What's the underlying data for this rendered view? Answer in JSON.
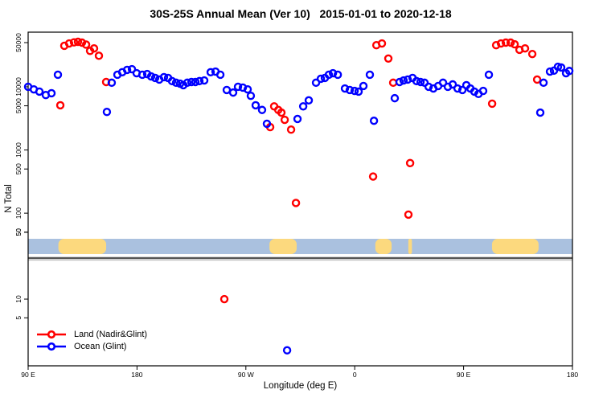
{
  "chart_data": {
    "type": "scatter",
    "title": "30S-25S Annual Mean (Ver 10)   2015-01-01 to 2020-12-18",
    "xlabel": "Longitude (deg E)",
    "ylabel": "N Total",
    "x_range_deg": [
      90,
      540
    ],
    "x_ticks": [
      {
        "lon": 90,
        "label": "90 E"
      },
      {
        "lon": 180,
        "label": "180"
      },
      {
        "lon": 270,
        "label": "90 W"
      },
      {
        "lon": 360,
        "label": "0"
      },
      {
        "lon": 450,
        "label": "90 E"
      },
      {
        "lon": 540,
        "label": "180"
      }
    ],
    "y_axis": {
      "scale": "log10",
      "broken": true,
      "upper_panel_ticks": [
        50000,
        10000,
        5000,
        1000,
        500,
        100,
        50
      ],
      "lower_panel_ticks": [
        50,
        10,
        5
      ],
      "upper_panel_range": [
        40,
        73000
      ],
      "lower_panel_range": [
        0.9,
        45
      ]
    },
    "surface_band": {
      "description_colors": {
        "ocean": "#AAC1DF",
        "land": "#FCD97E"
      },
      "land_segments_deg": [
        [
          115,
          154.5
        ],
        [
          289.5,
          312
        ],
        [
          377,
          390.5
        ],
        [
          404.3,
          407.3
        ],
        [
          473.5,
          512
        ]
      ]
    },
    "series": [
      {
        "name": "Land (Nadir&Glint)",
        "color": "#FF0000",
        "points": [
          [
            116.6,
            5100
          ],
          [
            119.9,
            44500
          ],
          [
            123.9,
            48500
          ],
          [
            127.9,
            50500
          ],
          [
            131.2,
            51500
          ],
          [
            134.5,
            50000
          ],
          [
            137.9,
            46500
          ],
          [
            141.2,
            37000
          ],
          [
            144.5,
            40500
          ],
          [
            148.5,
            31000
          ],
          [
            154.5,
            11900
          ],
          [
            252.2,
            10
          ],
          [
            290.1,
            2300
          ],
          [
            293.4,
            4900
          ],
          [
            296.8,
            4300
          ],
          [
            299.4,
            3900
          ],
          [
            302.1,
            3000
          ],
          [
            307.4,
            2100
          ],
          [
            311.4,
            145
          ],
          [
            375.2,
            380
          ],
          [
            377.9,
            45500
          ],
          [
            382.5,
            48500
          ],
          [
            387.8,
            28000
          ],
          [
            391.8,
            11600
          ],
          [
            404.4,
            95
          ],
          [
            405.8,
            620
          ],
          [
            473.6,
            5400
          ],
          [
            476.9,
            45500
          ],
          [
            480.9,
            48500
          ],
          [
            484.9,
            50000
          ],
          [
            488.9,
            50000
          ],
          [
            492.2,
            47000
          ],
          [
            496.2,
            38500
          ],
          [
            500.8,
            40500
          ],
          [
            506.8,
            33000
          ],
          [
            510.8,
            13000
          ]
        ]
      },
      {
        "name": "Ocean (Glint)",
        "color": "#0000FF",
        "points": [
          [
            90,
            10000
          ],
          [
            94.7,
            9100
          ],
          [
            99.3,
            8400
          ],
          [
            104.6,
            7400
          ],
          [
            109.3,
            7900
          ],
          [
            114.6,
            15500
          ],
          [
            155.1,
            4000
          ],
          [
            159.1,
            11600
          ],
          [
            163.8,
            15500
          ],
          [
            167.8,
            17000
          ],
          [
            171.8,
            18500
          ],
          [
            175.8,
            19000
          ],
          [
            179.7,
            16400
          ],
          [
            184.4,
            15500
          ],
          [
            188.4,
            15900
          ],
          [
            191.7,
            14600
          ],
          [
            195,
            13800
          ],
          [
            198.4,
            13000
          ],
          [
            202.3,
            14200
          ],
          [
            205.7,
            13800
          ],
          [
            209,
            12300
          ],
          [
            212.3,
            11600
          ],
          [
            215.6,
            11200
          ],
          [
            218.3,
            10600
          ],
          [
            221.6,
            11600
          ],
          [
            225,
            11900
          ],
          [
            228.3,
            11900
          ],
          [
            231.6,
            12300
          ],
          [
            235.6,
            12600
          ],
          [
            240.9,
            17000
          ],
          [
            244.9,
            17400
          ],
          [
            248.9,
            15500
          ],
          [
            254.2,
            8900
          ],
          [
            259.5,
            8100
          ],
          [
            263.5,
            10000
          ],
          [
            267.5,
            9700
          ],
          [
            271.5,
            9100
          ],
          [
            274.1,
            7200
          ],
          [
            278.1,
            5100
          ],
          [
            283.4,
            4300
          ],
          [
            287.4,
            2600
          ],
          [
            304.1,
            1.5
          ],
          [
            312.7,
            3100
          ],
          [
            317.4,
            4900
          ],
          [
            322,
            6100
          ],
          [
            328,
            11600
          ],
          [
            332,
            13400
          ],
          [
            335.3,
            13800
          ],
          [
            338.6,
            15500
          ],
          [
            342,
            16400
          ],
          [
            346,
            15500
          ],
          [
            351.9,
            9400
          ],
          [
            355.9,
            8900
          ],
          [
            359.9,
            8600
          ],
          [
            363.2,
            8400
          ],
          [
            367.2,
            10300
          ],
          [
            372.5,
            15500
          ],
          [
            375.9,
            2900
          ],
          [
            393.1,
            6600
          ],
          [
            397.1,
            11900
          ],
          [
            400.4,
            12600
          ],
          [
            403.8,
            13000
          ],
          [
            407.8,
            13800
          ],
          [
            411.1,
            12300
          ],
          [
            414.4,
            11900
          ],
          [
            417.7,
            11600
          ],
          [
            421.1,
            10000
          ],
          [
            425,
            9400
          ],
          [
            429,
            10300
          ],
          [
            433,
            11600
          ],
          [
            437,
            10000
          ],
          [
            441,
            10900
          ],
          [
            445,
            9400
          ],
          [
            449,
            8900
          ],
          [
            452.3,
            10600
          ],
          [
            455.6,
            9400
          ],
          [
            458.9,
            8400
          ],
          [
            462.3,
            7700
          ],
          [
            466.2,
            8600
          ],
          [
            470.9,
            15500
          ],
          [
            513.4,
            3900
          ],
          [
            516.1,
            11600
          ],
          [
            521.4,
            17400
          ],
          [
            524.7,
            18000
          ],
          [
            528,
            20700
          ],
          [
            530.7,
            20200
          ],
          [
            534.7,
            16400
          ],
          [
            537.4,
            17800
          ]
        ]
      }
    ]
  },
  "legend": {
    "items": [
      {
        "label": "Land (Nadir&Glint)",
        "color": "#FF0000"
      },
      {
        "label": "Ocean (Glint)",
        "color": "#0000FF"
      }
    ]
  }
}
